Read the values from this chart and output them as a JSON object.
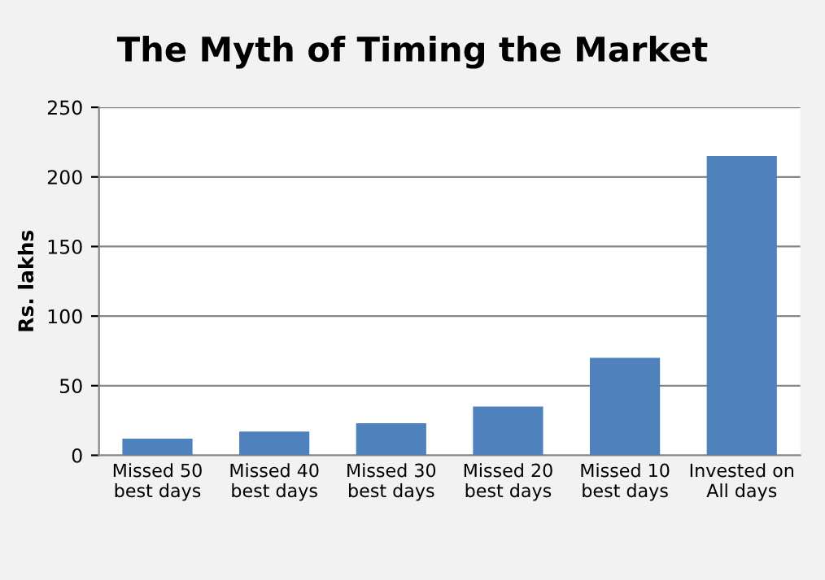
{
  "chart_data": {
    "type": "bar",
    "title": "The Myth of Timing the Market",
    "ylabel": "Rs. lakhs",
    "categories": [
      "Missed 50\nbest days",
      "Missed 40\nbest days",
      "Missed 30\nbest days",
      "Missed 20\nbest days",
      "Missed 10\nbest days",
      "Invested on\nAll days"
    ],
    "values": [
      12,
      17,
      23,
      35,
      70,
      215
    ],
    "color": "#4f81bd",
    "ylim": [
      0,
      250
    ],
    "yticks": [
      0,
      50,
      100,
      150,
      200,
      250
    ],
    "grid": "y"
  }
}
